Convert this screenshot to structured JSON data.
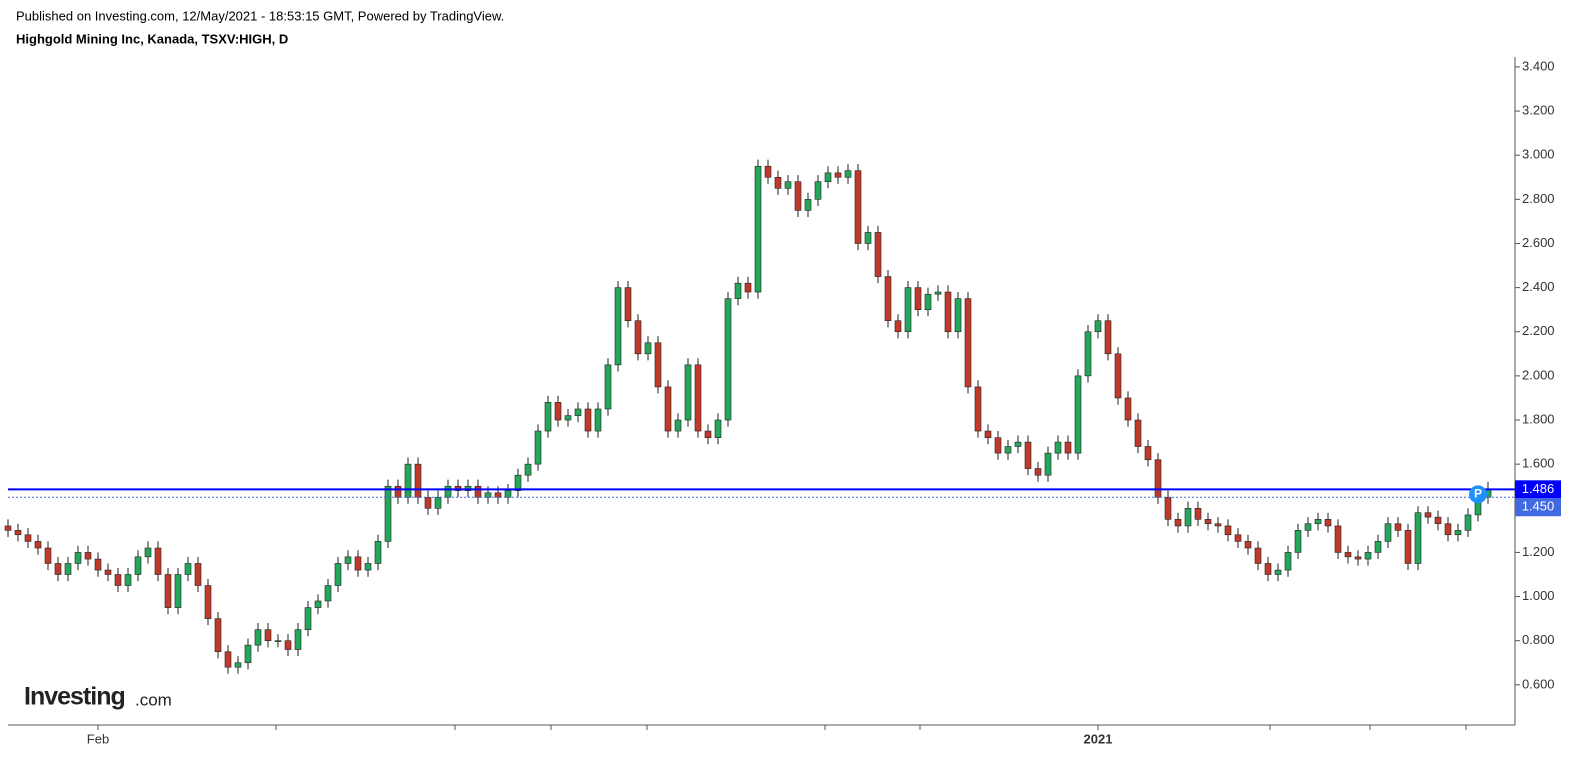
{
  "header": {
    "published": "Published on Investing.com, 12/May/2021 - 18:53:15 GMT, Powered by TradingView.",
    "symbol": "Highgold Mining Inc, Kanada, TSXV:HIGH, D"
  },
  "logo": {
    "name": "Investing",
    "suffix": ".com"
  },
  "marker": "P",
  "chart_data": {
    "type": "candlestick",
    "categories": [
      null,
      null,
      null,
      null,
      null,
      null,
      null,
      null,
      null,
      "Feb",
      null,
      null,
      null,
      null,
      null,
      null,
      null,
      null,
      null,
      null,
      null,
      null,
      null,
      null,
      null,
      null,
      null,
      null,
      null,
      null,
      null,
      null,
      null,
      null,
      null,
      null,
      null,
      null,
      null,
      null,
      null,
      null,
      null,
      null,
      null,
      null,
      null,
      null,
      null,
      null,
      null,
      null,
      null,
      null,
      null,
      null,
      null,
      null,
      null,
      null,
      null,
      null,
      null,
      null,
      null,
      null,
      null,
      null,
      null,
      null,
      null,
      null,
      null,
      null,
      null,
      null,
      null,
      null,
      null,
      null,
      null,
      null,
      null,
      null,
      null,
      null,
      null,
      null,
      null,
      null,
      null,
      null,
      null,
      null,
      null,
      null,
      null,
      null,
      null,
      null,
      null,
      null,
      null,
      null,
      null,
      null,
      null,
      null,
      null,
      "2021",
      null,
      null,
      null,
      null,
      null,
      null,
      null,
      null,
      null,
      null,
      null,
      null,
      null,
      null,
      null,
      null,
      null,
      null,
      null,
      null,
      null,
      null,
      null,
      null,
      null,
      null,
      null,
      null,
      null,
      null,
      null,
      null,
      null,
      null,
      null,
      null,
      null,
      null,
      null
    ],
    "open": [
      1.32,
      1.3,
      1.28,
      1.25,
      1.22,
      1.15,
      1.1,
      1.15,
      1.2,
      1.17,
      1.12,
      1.1,
      1.05,
      1.1,
      1.18,
      1.22,
      1.1,
      0.95,
      1.1,
      1.15,
      1.05,
      0.9,
      0.75,
      0.68,
      0.7,
      0.78,
      0.85,
      0.8,
      0.8,
      0.76,
      0.85,
      0.95,
      0.98,
      1.05,
      1.15,
      1.18,
      1.12,
      1.15,
      1.25,
      1.5,
      1.45,
      1.6,
      1.45,
      1.4,
      1.45,
      1.5,
      1.48,
      1.5,
      1.45,
      1.47,
      1.45,
      1.48,
      1.55,
      1.6,
      1.75,
      1.88,
      1.8,
      1.82,
      1.85,
      1.75,
      1.85,
      2.05,
      2.4,
      2.25,
      2.1,
      2.15,
      1.95,
      1.75,
      1.8,
      2.05,
      1.75,
      1.72,
      1.8,
      2.35,
      2.42,
      2.38,
      2.95,
      2.9,
      2.85,
      2.88,
      2.75,
      2.8,
      2.88,
      2.92,
      2.9,
      2.93,
      2.6,
      2.65,
      2.45,
      2.25,
      2.2,
      2.4,
      2.3,
      2.37,
      2.38,
      2.2,
      2.35,
      1.95,
      1.75,
      1.72,
      1.65,
      1.68,
      1.7,
      1.58,
      1.55,
      1.65,
      1.7,
      1.65,
      2.0,
      2.2,
      2.25,
      2.1,
      1.9,
      1.8,
      1.68,
      1.62,
      1.45,
      1.35,
      1.32,
      1.4,
      1.35,
      1.33,
      1.32,
      1.28,
      1.25,
      1.22,
      1.15,
      1.1,
      1.12,
      1.2,
      1.3,
      1.33,
      1.35,
      1.32,
      1.2,
      1.18,
      1.17,
      1.2,
      1.25,
      1.33,
      1.3,
      1.15,
      1.38,
      1.36,
      1.33,
      1.28,
      1.3,
      1.37,
      1.45
    ],
    "high": [
      1.35,
      1.33,
      1.31,
      1.28,
      1.25,
      1.18,
      1.18,
      1.23,
      1.23,
      1.2,
      1.15,
      1.13,
      1.13,
      1.21,
      1.25,
      1.25,
      1.13,
      1.13,
      1.18,
      1.18,
      1.08,
      0.93,
      0.78,
      0.73,
      0.81,
      0.88,
      0.88,
      0.83,
      0.83,
      0.88,
      0.98,
      1.01,
      1.08,
      1.18,
      1.21,
      1.21,
      1.18,
      1.28,
      1.53,
      1.53,
      1.63,
      1.63,
      1.48,
      1.48,
      1.53,
      1.53,
      1.53,
      1.53,
      1.5,
      1.5,
      1.51,
      1.58,
      1.63,
      1.78,
      1.91,
      1.91,
      1.85,
      1.88,
      1.88,
      1.88,
      2.08,
      2.43,
      2.43,
      2.28,
      2.18,
      2.18,
      1.98,
      1.83,
      2.08,
      2.08,
      1.78,
      1.83,
      2.38,
      2.45,
      2.45,
      2.98,
      2.98,
      2.93,
      2.91,
      2.91,
      2.83,
      2.91,
      2.95,
      2.95,
      2.96,
      2.96,
      2.68,
      2.68,
      2.48,
      2.28,
      2.43,
      2.43,
      2.4,
      2.41,
      2.41,
      2.38,
      2.38,
      1.98,
      1.78,
      1.75,
      1.71,
      1.73,
      1.73,
      1.61,
      1.68,
      1.73,
      1.73,
      2.03,
      2.23,
      2.28,
      2.28,
      2.13,
      1.93,
      1.83,
      1.71,
      1.65,
      1.48,
      1.38,
      1.43,
      1.43,
      1.38,
      1.36,
      1.35,
      1.31,
      1.28,
      1.25,
      1.18,
      1.15,
      1.23,
      1.33,
      1.36,
      1.38,
      1.38,
      1.35,
      1.23,
      1.21,
      1.23,
      1.28,
      1.36,
      1.36,
      1.33,
      1.41,
      1.41,
      1.39,
      1.36,
      1.33,
      1.4,
      1.48,
      1.52
    ],
    "low": [
      1.27,
      1.25,
      1.22,
      1.19,
      1.12,
      1.07,
      1.07,
      1.12,
      1.14,
      1.09,
      1.07,
      1.02,
      1.02,
      1.07,
      1.15,
      1.07,
      0.92,
      0.92,
      1.07,
      1.02,
      0.87,
      0.72,
      0.65,
      0.65,
      0.67,
      0.75,
      0.77,
      0.77,
      0.73,
      0.73,
      0.82,
      0.92,
      0.95,
      1.02,
      1.12,
      1.09,
      1.09,
      1.12,
      1.22,
      1.42,
      1.42,
      1.42,
      1.37,
      1.37,
      1.42,
      1.45,
      1.45,
      1.42,
      1.42,
      1.42,
      1.42,
      1.45,
      1.52,
      1.57,
      1.72,
      1.77,
      1.77,
      1.79,
      1.72,
      1.72,
      1.82,
      2.02,
      2.22,
      2.07,
      2.07,
      1.92,
      1.72,
      1.72,
      1.77,
      1.72,
      1.69,
      1.69,
      1.77,
      2.32,
      2.35,
      2.35,
      2.87,
      2.82,
      2.82,
      2.72,
      2.72,
      2.77,
      2.85,
      2.87,
      2.87,
      2.57,
      2.57,
      2.42,
      2.22,
      2.17,
      2.17,
      2.27,
      2.27,
      2.34,
      2.17,
      2.17,
      1.92,
      1.72,
      1.69,
      1.62,
      1.62,
      1.65,
      1.55,
      1.52,
      1.52,
      1.62,
      1.62,
      1.62,
      1.97,
      2.17,
      2.07,
      1.87,
      1.77,
      1.65,
      1.59,
      1.42,
      1.32,
      1.29,
      1.29,
      1.32,
      1.3,
      1.29,
      1.25,
      1.22,
      1.19,
      1.12,
      1.07,
      1.07,
      1.09,
      1.17,
      1.27,
      1.3,
      1.29,
      1.17,
      1.15,
      1.14,
      1.14,
      1.17,
      1.22,
      1.27,
      1.12,
      1.12,
      1.33,
      1.3,
      1.25,
      1.25,
      1.27,
      1.34,
      1.42
    ],
    "close": [
      1.3,
      1.28,
      1.25,
      1.22,
      1.15,
      1.1,
      1.15,
      1.2,
      1.17,
      1.12,
      1.1,
      1.05,
      1.1,
      1.18,
      1.22,
      1.1,
      0.95,
      1.1,
      1.15,
      1.05,
      0.9,
      0.75,
      0.68,
      0.7,
      0.78,
      0.85,
      0.8,
      0.8,
      0.76,
      0.85,
      0.95,
      0.98,
      1.05,
      1.15,
      1.18,
      1.12,
      1.15,
      1.25,
      1.5,
      1.45,
      1.6,
      1.45,
      1.4,
      1.45,
      1.5,
      1.48,
      1.5,
      1.45,
      1.47,
      1.45,
      1.48,
      1.55,
      1.6,
      1.75,
      1.88,
      1.8,
      1.82,
      1.85,
      1.75,
      1.85,
      2.05,
      2.4,
      2.25,
      2.1,
      2.15,
      1.95,
      1.75,
      1.8,
      2.05,
      1.75,
      1.72,
      1.8,
      2.35,
      2.42,
      2.38,
      2.95,
      2.9,
      2.85,
      2.88,
      2.75,
      2.8,
      2.88,
      2.92,
      2.9,
      2.93,
      2.6,
      2.65,
      2.45,
      2.25,
      2.2,
      2.4,
      2.3,
      2.37,
      2.38,
      2.2,
      2.35,
      1.95,
      1.75,
      1.72,
      1.65,
      1.68,
      1.7,
      1.58,
      1.55,
      1.65,
      1.7,
      1.65,
      2.0,
      2.2,
      2.25,
      2.1,
      1.9,
      1.8,
      1.68,
      1.62,
      1.45,
      1.35,
      1.32,
      1.4,
      1.35,
      1.33,
      1.32,
      1.28,
      1.25,
      1.22,
      1.15,
      1.1,
      1.12,
      1.2,
      1.3,
      1.33,
      1.35,
      1.32,
      1.2,
      1.18,
      1.17,
      1.2,
      1.25,
      1.33,
      1.3,
      1.15,
      1.38,
      1.36,
      1.33,
      1.28,
      1.3,
      1.37,
      1.45,
      1.486
    ],
    "up_color": "#26a65b",
    "down_color": "#c0392b",
    "ylim": [
      0.418,
      3.445
    ],
    "yticks": [
      {
        "value": 3.4,
        "label": "3.400"
      },
      {
        "value": 3.2,
        "label": "3.200"
      },
      {
        "value": 3.0,
        "label": "3.000"
      },
      {
        "value": 2.8,
        "label": "2.800"
      },
      {
        "value": 2.6,
        "label": "2.600"
      },
      {
        "value": 2.4,
        "label": "2.400"
      },
      {
        "value": 2.2,
        "label": "2.200"
      },
      {
        "value": 2.0,
        "label": "2.000"
      },
      {
        "value": 1.8,
        "label": "1.800"
      },
      {
        "value": 1.6,
        "label": "1.600"
      },
      {
        "value": 1.2,
        "label": "1.200"
      },
      {
        "value": 1.0,
        "label": "1.000"
      },
      {
        "value": 0.8,
        "label": "0.800"
      },
      {
        "value": 0.6,
        "label": "0.600"
      }
    ],
    "price_lines": [
      {
        "value": 1.486,
        "label": "1.486",
        "color": "#0000ff",
        "style": "solid"
      },
      {
        "value": 1.45,
        "label": "1.450",
        "color": "#4169e1",
        "style": "dotted"
      }
    ]
  }
}
